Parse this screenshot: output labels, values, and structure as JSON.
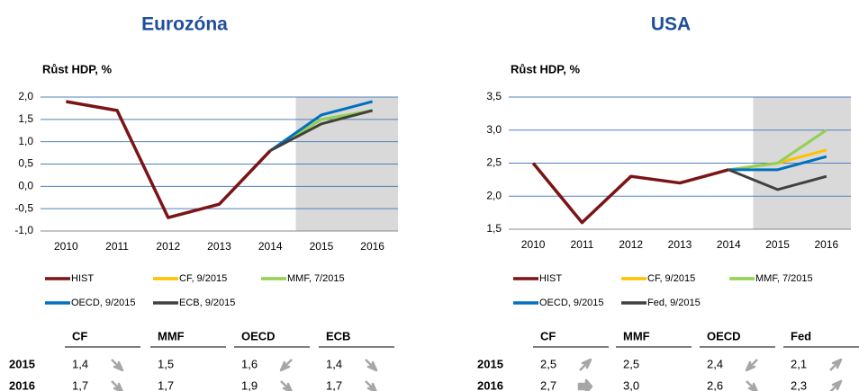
{
  "chart_data": [
    {
      "type": "line",
      "title": "Eurozóna",
      "subtitle": "Růst HDP, %",
      "categories": [
        "2010",
        "2011",
        "2012",
        "2013",
        "2014",
        "2015",
        "2016"
      ],
      "series": [
        {
          "name": "HIST",
          "color": "#7b1416",
          "values": [
            1.9,
            1.7,
            -0.7,
            -0.4,
            0.8,
            null,
            null
          ]
        },
        {
          "name": "CF, 9/2015",
          "color": "#ffc000",
          "values": [
            null,
            null,
            null,
            null,
            0.8,
            1.4,
            1.7
          ]
        },
        {
          "name": "MMF, 7/2015",
          "color": "#92d050",
          "values": [
            null,
            null,
            null,
            null,
            0.8,
            1.5,
            1.7
          ]
        },
        {
          "name": "OECD, 9/2015",
          "color": "#0070c0",
          "values": [
            null,
            null,
            null,
            null,
            0.8,
            1.6,
            1.9
          ]
        },
        {
          "name": "ECB, 9/2015",
          "color": "#404040",
          "values": [
            null,
            null,
            null,
            null,
            0.8,
            1.4,
            1.7
          ]
        }
      ],
      "ylim": [
        -1,
        2
      ],
      "yticks": [
        {
          "value": -1,
          "label": "-1,0"
        },
        {
          "value": -0.5,
          "label": "-0,5"
        },
        {
          "value": 0,
          "label": "0,0"
        },
        {
          "value": 0.5,
          "label": "0,5"
        },
        {
          "value": 1,
          "label": "1,0"
        },
        {
          "value": 1.5,
          "label": "1,5"
        },
        {
          "value": 2,
          "label": "2,0"
        }
      ],
      "grid": true,
      "table": {
        "columns": [
          "CF",
          "MMF",
          "OECD",
          "ECB"
        ],
        "rows": [
          {
            "label": "2015",
            "cells": [
              "1,4",
              "1,5",
              "1,6",
              "1,4"
            ]
          },
          {
            "label": "2016",
            "cells": [
              "1,7",
              "1,7",
              "1,9",
              "1,7"
            ]
          }
        ]
      }
    },
    {
      "type": "line",
      "title": "USA",
      "subtitle": "Růst HDP, %",
      "categories": [
        "2010",
        "2011",
        "2012",
        "2013",
        "2014",
        "2015",
        "2016"
      ],
      "series": [
        {
          "name": "HIST",
          "color": "#7b1416",
          "values": [
            2.5,
            1.6,
            2.3,
            2.2,
            2.4,
            null,
            null
          ]
        },
        {
          "name": "CF, 9/2015",
          "color": "#ffc000",
          "values": [
            null,
            null,
            null,
            null,
            2.4,
            2.5,
            2.7
          ]
        },
        {
          "name": "MMF, 7/2015",
          "color": "#92d050",
          "values": [
            null,
            null,
            null,
            null,
            2.4,
            2.5,
            3.0
          ]
        },
        {
          "name": "OECD, 9/2015",
          "color": "#0070c0",
          "values": [
            null,
            null,
            null,
            null,
            2.4,
            2.4,
            2.6
          ]
        },
        {
          "name": "Fed, 9/2015",
          "color": "#404040",
          "values": [
            null,
            null,
            null,
            null,
            2.4,
            2.1,
            2.3
          ]
        }
      ],
      "ylim": [
        1.5,
        3.5
      ],
      "yticks": [
        {
          "value": 1.5,
          "label": "1,5"
        },
        {
          "value": 2,
          "label": "2,0"
        },
        {
          "value": 2.5,
          "label": "2,5"
        },
        {
          "value": 3,
          "label": "3,0"
        },
        {
          "value": 3.5,
          "label": "3,5"
        }
      ],
      "grid": true,
      "table": {
        "columns": [
          "CF",
          "MMF",
          "OECD",
          "Fed"
        ],
        "rows": [
          {
            "label": "2015",
            "cells": [
              "2,5",
              "2,5",
              "2,4",
              "2,1"
            ]
          },
          {
            "label": "2016",
            "cells": [
              "2,7",
              "3,0",
              "2,6",
              "2,3"
            ]
          }
        ]
      }
    }
  ]
}
